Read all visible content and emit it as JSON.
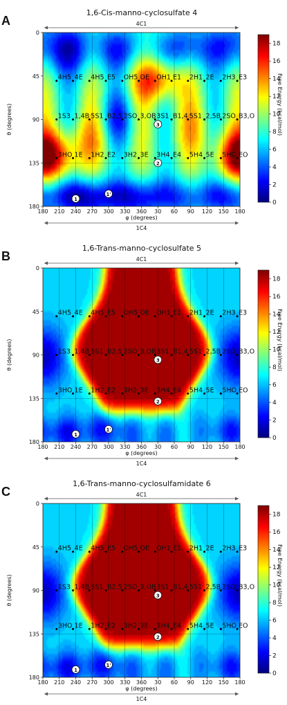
{
  "panels": [
    {
      "letter": "A",
      "title": "1,6-Cis-manno-cyclosulfate 4",
      "compound": "cis"
    },
    {
      "letter": "B",
      "title": "1,6-Trans-manno-cyclosulfate 5",
      "compound": "trans"
    },
    {
      "letter": "C",
      "title": "1,6-Trans-manno-cyclosulfamidate 6",
      "compound": "trans"
    }
  ],
  "axes": {
    "xlabel": "φ (degrees)",
    "ylabel": "θ (degrees)",
    "top_label": "4C1",
    "bottom_label": "1C4",
    "x_ticks": [
      "180",
      "210",
      "240",
      "270",
      "300",
      "330",
      "360",
      "30",
      "60",
      "90",
      "120",
      "150",
      "180"
    ],
    "y_ticks": [
      "0",
      "45",
      "90",
      "135",
      "180"
    ],
    "colorbar_label": "Free Energy (kcal/mol)",
    "colorbar_ticks": [
      "0",
      "2",
      "4",
      "6",
      "8",
      "10",
      "12",
      "14",
      "16",
      "18"
    ]
  },
  "conformer_rows": [
    {
      "theta": 50,
      "labels": [
        "4H5",
        "4E",
        "4H5",
        "E5",
        "OH5",
        "OE",
        "OH1",
        "E1",
        "2H1",
        "2E",
        "2H3",
        "E3"
      ]
    },
    {
      "theta": 90,
      "labels": [
        "1S3",
        "1,4B",
        "5S1",
        "B2,5",
        "2SO",
        "3,OB",
        "3S1",
        "B1,4",
        "5S1",
        "2,5B",
        "2SO",
        "B3,O"
      ]
    },
    {
      "theta": 130,
      "labels": [
        "3HO",
        "1E",
        "1H2",
        "E2",
        "3H2",
        "3E",
        "3H4",
        "E4",
        "5H4",
        "5E",
        "5HO",
        "EO"
      ]
    }
  ],
  "chart_data": [
    {
      "type": "heatmap",
      "title": "1,6-Cis-manno-cyclosulfate 4",
      "xlabel": "φ (degrees)",
      "ylabel": "θ (degrees)",
      "xlim": [
        0,
        360
      ],
      "ylim": [
        0,
        180
      ],
      "x_tick_labels": [
        "180",
        "210",
        "240",
        "270",
        "300",
        "330",
        "360",
        "30",
        "60",
        "90",
        "120",
        "150",
        "180"
      ],
      "y_tick_labels": [
        "0",
        "45",
        "90",
        "135",
        "180"
      ],
      "colorbar": {
        "label": "Free Energy (kcal/mol)",
        "min": 0,
        "max": 19
      },
      "minima": [
        {
          "label": "1",
          "phi": 240,
          "theta": 172
        },
        {
          "label": "1'",
          "phi": 300,
          "theta": 167
        },
        {
          "label": "2",
          "phi": 30,
          "theta": 135
        },
        {
          "label": "3",
          "phi": 30,
          "theta": 95
        }
      ]
    },
    {
      "type": "heatmap",
      "title": "1,6-Trans-manno-cyclosulfate 5",
      "xlabel": "φ (degrees)",
      "ylabel": "θ (degrees)",
      "xlim": [
        0,
        360
      ],
      "ylim": [
        0,
        180
      ],
      "x_tick_labels": [
        "180",
        "210",
        "240",
        "270",
        "300",
        "330",
        "360",
        "30",
        "60",
        "90",
        "120",
        "150",
        "180"
      ],
      "y_tick_labels": [
        "0",
        "45",
        "90",
        "135",
        "180"
      ],
      "colorbar": {
        "label": "Free Energy (kcal/mol)",
        "min": 0,
        "max": 19
      },
      "minima": [
        {
          "label": "1",
          "phi": 240,
          "theta": 172
        },
        {
          "label": "1'",
          "phi": 300,
          "theta": 167
        },
        {
          "label": "2",
          "phi": 30,
          "theta": 138
        },
        {
          "label": "3",
          "phi": 30,
          "theta": 95
        }
      ]
    },
    {
      "type": "heatmap",
      "title": "1,6-Trans-manno-cyclosulfamidate 6",
      "xlabel": "φ (degrees)",
      "ylabel": "θ (degrees)",
      "xlim": [
        0,
        360
      ],
      "ylim": [
        0,
        180
      ],
      "x_tick_labels": [
        "180",
        "210",
        "240",
        "270",
        "300",
        "330",
        "360",
        "30",
        "60",
        "90",
        "120",
        "150",
        "180"
      ],
      "y_tick_labels": [
        "0",
        "45",
        "90",
        "135",
        "180"
      ],
      "colorbar": {
        "label": "Free Energy (kcal/mol)",
        "min": 0,
        "max": 19
      },
      "minima": [
        {
          "label": "1",
          "phi": 240,
          "theta": 172
        },
        {
          "label": "1'",
          "phi": 300,
          "theta": 167
        },
        {
          "label": "2",
          "phi": 30,
          "theta": 138
        },
        {
          "label": "3",
          "phi": 30,
          "theta": 95
        }
      ]
    }
  ]
}
